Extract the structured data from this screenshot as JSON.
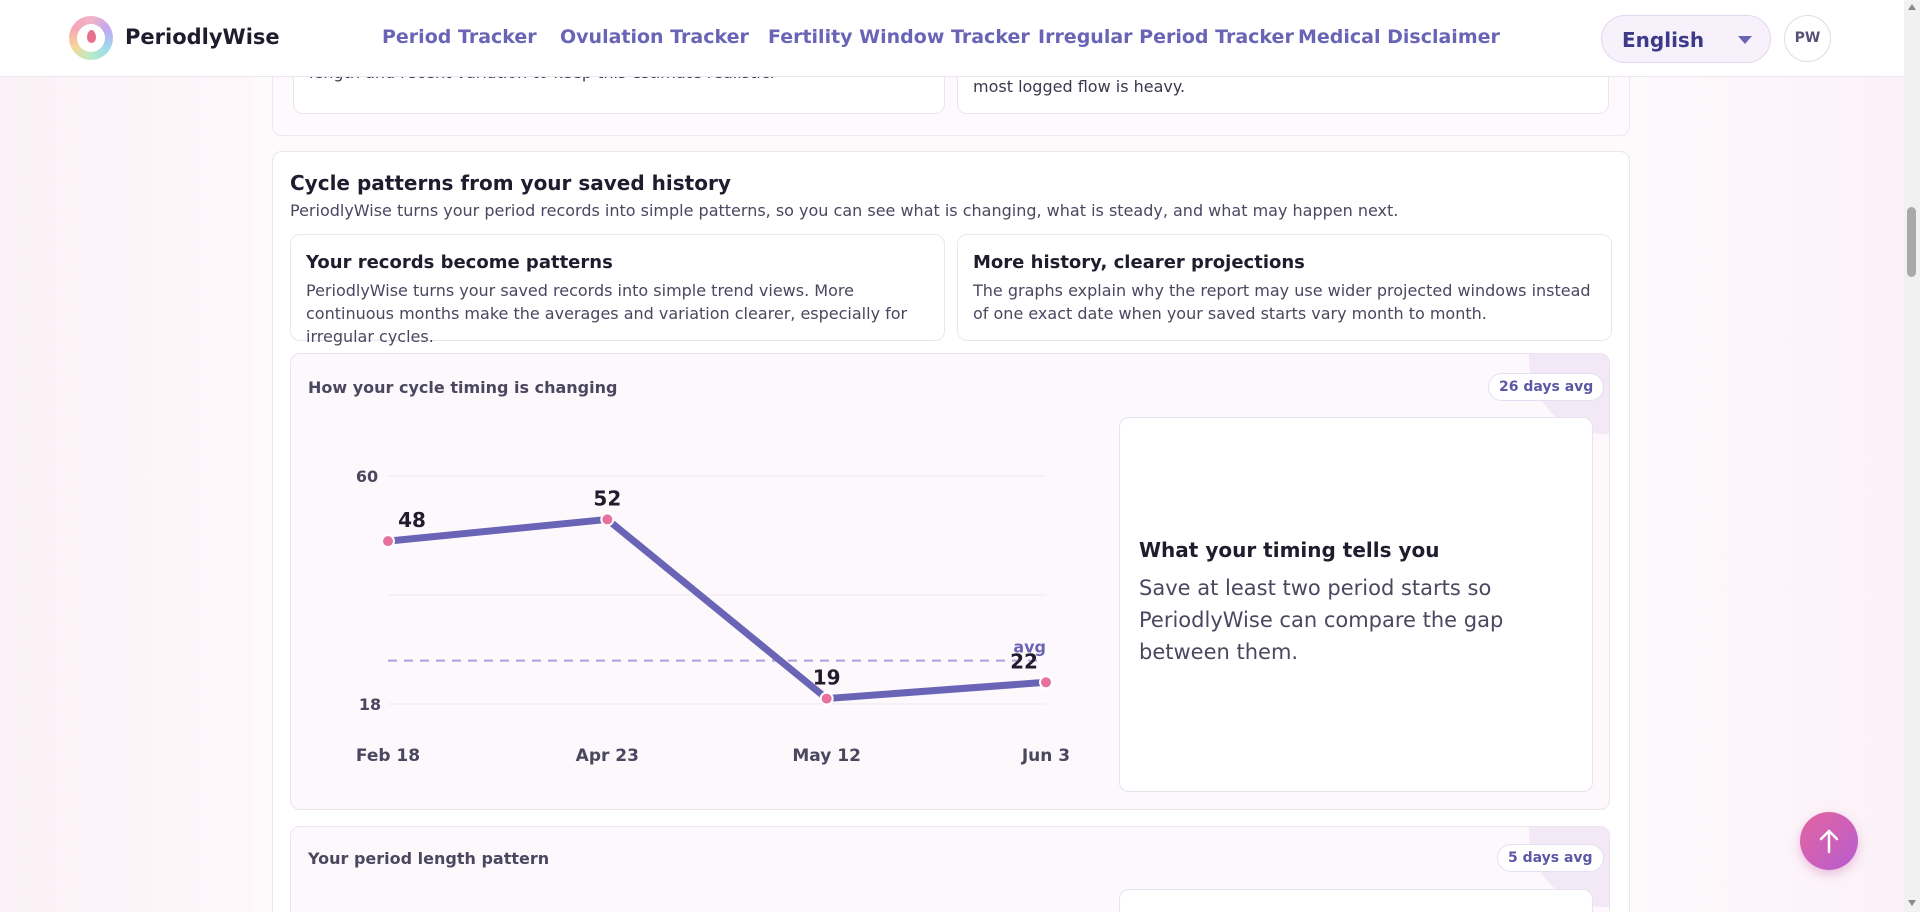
{
  "header": {
    "brand": "PeriodlyWise",
    "nav": [
      "Period Tracker",
      "Ovulation Tracker",
      "Fertility Window Tracker",
      "Irregular Period Tracker",
      "Medical Disclaimer"
    ],
    "language": "English",
    "avatar_initials": "PW"
  },
  "previous_cards": {
    "left_text": "length and recent variation to keep this estimate realistic.",
    "right_text": "most logged flow is heavy."
  },
  "section": {
    "title": "Cycle patterns from your saved history",
    "subtitle": "PeriodlyWise turns your period records into simple patterns, so you can see what is changing, what is steady, and what may happen next.",
    "info_cards": [
      {
        "title": "Your records become patterns",
        "body": "PeriodlyWise turns your saved records into simple trend views. More continuous months make the averages and variation clearer, especially for irregular cycles."
      },
      {
        "title": "More history, clearer projections",
        "body": "The graphs explain why the report may use wider projected windows instead of one exact date when your saved starts vary month to month."
      }
    ]
  },
  "timing_card": {
    "title": "How your cycle timing is changing",
    "badge": "26 days avg",
    "insight_title": "What your timing tells you",
    "insight_body": "Save at least two period starts so PeriodlyWise can compare the gap between them."
  },
  "length_card": {
    "title": "Your period length pattern",
    "badge": "5 days avg"
  },
  "chart_data": {
    "type": "line",
    "title": "How your cycle timing is changing",
    "categories": [
      "Feb 18",
      "Apr 23",
      "May 12",
      "Jun 3"
    ],
    "values": [
      48,
      52,
      19,
      22
    ],
    "average": 26,
    "average_label": "avg",
    "y_ticks": [
      60,
      18
    ],
    "ylim": [
      18,
      60
    ],
    "xlabel": "",
    "ylabel": "",
    "grid": true,
    "colors": {
      "line": "#6a64b6",
      "point": "#e6719c",
      "avg": "#a9a3d8"
    }
  }
}
